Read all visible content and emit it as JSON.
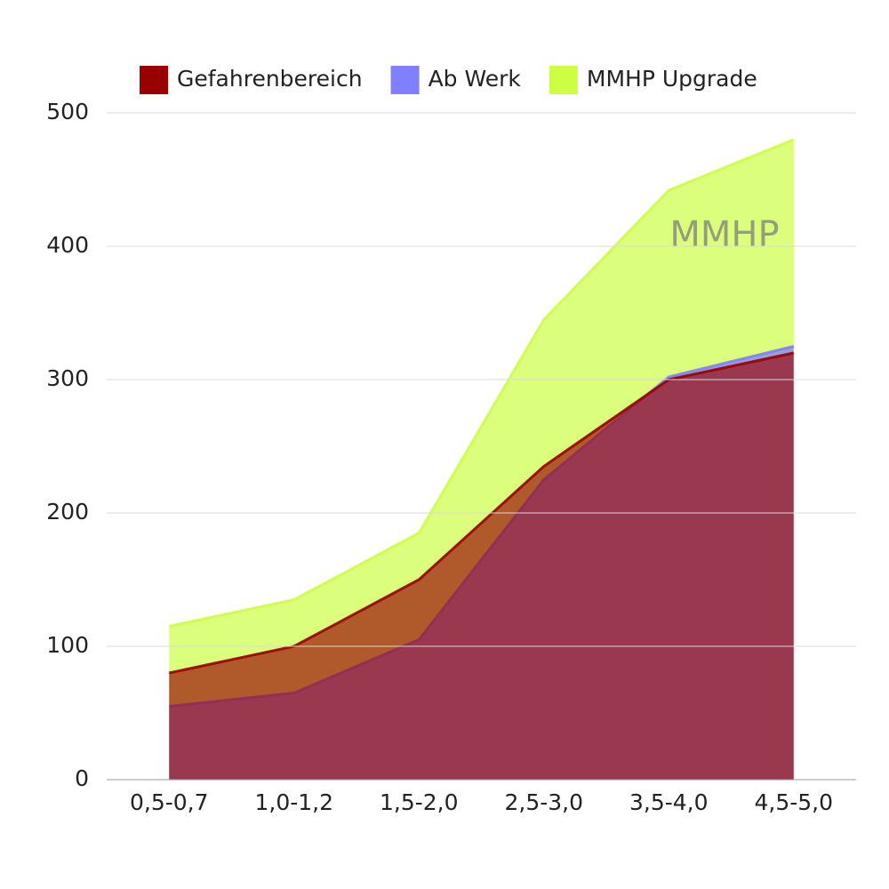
{
  "chart_data": {
    "type": "area",
    "categories": [
      "0,5-0,7",
      "1,0-1,2",
      "1,5-2,0",
      "2,5-3,0",
      "3,5-4,0",
      "4,5-5,0"
    ],
    "series": [
      {
        "name": "Gefahrenbereich",
        "color": "#990000",
        "values": [
          80,
          100,
          150,
          235,
          300,
          320
        ]
      },
      {
        "name": "Ab Werk",
        "color": "#8080ff",
        "values": [
          55,
          65,
          105,
          225,
          302,
          325
        ]
      },
      {
        "name": "MMHP Upgrade",
        "color": "#ccff44",
        "values": [
          115,
          135,
          185,
          345,
          442,
          480
        ]
      }
    ],
    "ylim": [
      0,
      500
    ],
    "yticks": [
      0,
      100,
      200,
      300,
      400,
      500
    ],
    "grid": true,
    "legend": "top",
    "watermark": "MMHP"
  }
}
